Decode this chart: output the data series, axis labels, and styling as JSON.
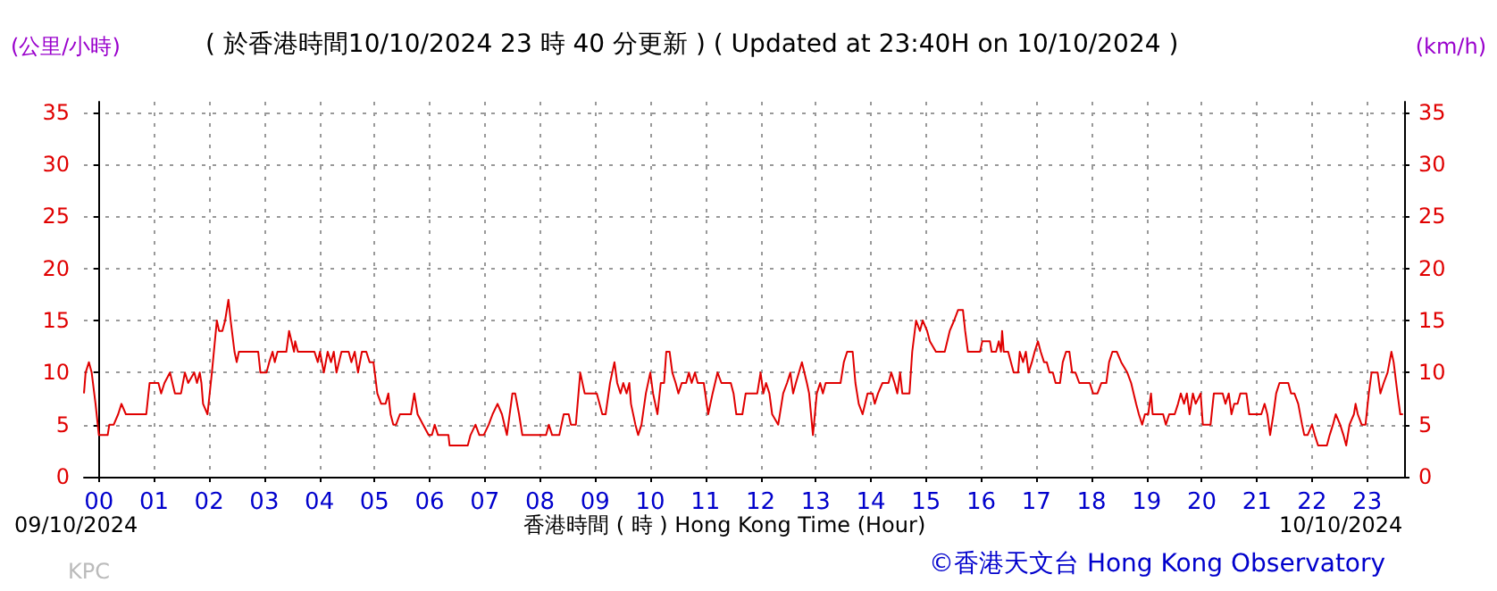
{
  "chart_data": {
    "type": "line",
    "title": "( 於香港時間10/10/2024 23 時 40 分更新 ) ( Updated at 23:40H on 10/10/2024 )",
    "xlabel": "香港時間 ( 時 ) Hong Kong Time (Hour)",
    "ylabel": "(公里/小時)",
    "y2label": "(km/h)",
    "annotations": [
      "09/10/2024",
      "10/10/2024",
      "KPC",
      "©香港天文台 Hong Kong Observatory"
    ],
    "x": [
      -0.27,
      -0.24,
      -0.18,
      -0.13,
      -0.06,
      0,
      0.16,
      0.19,
      0.27,
      0.35,
      0.41,
      0.49,
      0.86,
      0.92,
      1.08,
      1.13,
      1.19,
      1.29,
      1.38,
      1.49,
      1.56,
      1.62,
      1.73,
      1.78,
      1.83,
      1.86,
      1.89,
      1.97,
      2.05,
      2.14,
      2.18,
      2.24,
      2.29,
      2.35,
      2.39,
      2.46,
      2.5,
      2.54,
      2.89,
      2.93,
      3.04,
      3.09,
      3.15,
      3.19,
      3.24,
      3.4,
      3.45,
      3.54,
      3.56,
      3.61,
      3.91,
      3.97,
      4.01,
      4.08,
      4.15,
      4.21,
      4.26,
      4.31,
      4.4,
      4.53,
      4.58,
      4.64,
      4.7,
      4.77,
      4.85,
      4.91,
      4.98,
      5.05,
      5.12,
      5.2,
      5.25,
      5.29,
      5.34,
      5.39,
      5.46,
      5.66,
      5.72,
      5.78,
      5.88,
      5.98,
      6.04,
      6.09,
      6.15,
      6.34,
      6.36,
      6.69,
      6.74,
      6.83,
      6.9,
      6.98,
      7.07,
      7.14,
      7.23,
      7.31,
      7.4,
      7.5,
      7.55,
      7.62,
      7.68,
      8.11,
      8.16,
      8.22,
      8.35,
      8.43,
      8.52,
      8.56,
      8.65,
      8.73,
      8.81,
      9.03,
      9.08,
      9.13,
      9.19,
      9.27,
      9.35,
      9.4,
      9.46,
      9.51,
      9.57,
      9.62,
      9.65,
      9.73,
      9.78,
      9.84,
      9.92,
      10.0,
      10.05,
      10.13,
      10.19,
      10.25,
      10.29,
      10.35,
      10.4,
      10.46,
      10.51,
      10.57,
      10.65,
      10.7,
      10.75,
      10.81,
      10.86,
      10.97,
      11.05,
      11.13,
      11.22,
      11.29,
      11.46,
      11.51,
      11.56,
      11.67,
      11.73,
      11.94,
      12.0,
      12.05,
      12.1,
      12.16,
      12.21,
      12.32,
      12.41,
      12.48,
      12.54,
      12.59,
      12.64,
      12.75,
      12.84,
      12.88,
      12.95,
      13.02,
      13.08,
      13.13,
      13.18,
      13.45,
      13.51,
      13.57,
      13.67,
      13.72,
      13.78,
      13.85,
      13.94,
      14.03,
      14.07,
      14.13,
      14.21,
      14.32,
      14.37,
      14.43,
      14.48,
      14.53,
      14.57,
      14.7,
      14.75,
      14.82,
      14.89,
      14.94,
      15.02,
      15.07,
      15.18,
      15.34,
      15.43,
      15.51,
      15.58,
      15.67,
      15.71,
      15.76,
      15.98,
      16.02,
      16.16,
      16.19,
      16.27,
      16.32,
      16.36,
      16.38,
      16.41,
      16.49,
      16.54,
      16.59,
      16.67,
      16.7,
      16.76,
      16.81,
      16.86,
      16.92,
      16.97,
      17.03,
      17.08,
      17.14,
      17.19,
      17.24,
      17.3,
      17.35,
      17.43,
      17.48,
      17.54,
      17.6,
      17.65,
      17.71,
      17.78,
      17.97,
      18.03,
      18.11,
      18.18,
      18.27,
      18.32,
      18.38,
      18.46,
      18.54,
      18.65,
      18.72,
      18.81,
      18.86,
      18.92,
      18.97,
      19.03,
      19.08,
      19.11,
      19.3,
      19.35,
      19.41,
      19.51,
      19.57,
      19.62,
      19.68,
      19.73,
      19.78,
      19.84,
      19.89,
      19.98,
      20.02,
      20.16,
      20.22,
      20.38,
      20.43,
      20.49,
      20.54,
      20.59,
      20.65,
      20.7,
      20.81,
      20.86,
      21.08,
      21.14,
      21.19,
      21.24,
      21.3,
      21.35,
      21.41,
      21.57,
      21.62,
      21.68,
      21.75,
      21.82,
      21.86,
      21.92,
      22.0,
      22.05,
      22.11,
      22.27,
      22.32,
      22.38,
      22.43,
      22.51,
      22.57,
      22.62,
      22.68,
      22.76,
      22.79,
      22.83,
      22.9,
      22.97,
      23.03,
      23.08,
      23.19,
      23.24,
      23.3,
      23.37,
      23.44,
      23.48,
      23.55,
      23.6,
      23.65
    ],
    "series": [
      {
        "color": "#e00000",
        "values": [
          8,
          10,
          11,
          10,
          7,
          4,
          4,
          5,
          5,
          6,
          7,
          6,
          6,
          9,
          9,
          8,
          9,
          10,
          8,
          8,
          10,
          9,
          10,
          9,
          10,
          9,
          7,
          6,
          10,
          15,
          14,
          14,
          15,
          17,
          15,
          12,
          11,
          12,
          12,
          10,
          10,
          11,
          12,
          11,
          12,
          12,
          14,
          12,
          13,
          12,
          12,
          11,
          12,
          10,
          12,
          11,
          12,
          10,
          12,
          12,
          11,
          12,
          10,
          12,
          12,
          11,
          11,
          8,
          7,
          7,
          8,
          6,
          5,
          5,
          6,
          6,
          8,
          6,
          5,
          4,
          4,
          5,
          4,
          4,
          3,
          3,
          4,
          5,
          4,
          4,
          5,
          6,
          7,
          6,
          4,
          8,
          8,
          6,
          4,
          4,
          5,
          4,
          4,
          6,
          6,
          5,
          5,
          10,
          8,
          8,
          7,
          6,
          6,
          9,
          11,
          9,
          8,
          9,
          8,
          9,
          7,
          5,
          4,
          5,
          8,
          10,
          8,
          6,
          9,
          9,
          12,
          12,
          10,
          9,
          8,
          9,
          9,
          10,
          9,
          10,
          9,
          9,
          6,
          8,
          10,
          9,
          9,
          8,
          6,
          6,
          8,
          8,
          10,
          8,
          9,
          8,
          6,
          5,
          8,
          9,
          10,
          8,
          9,
          11,
          9,
          8,
          4,
          8,
          9,
          8,
          9,
          9,
          11,
          12,
          12,
          9,
          7,
          6,
          8,
          8,
          7,
          8,
          9,
          9,
          10,
          9,
          8,
          10,
          8,
          8,
          12,
          15,
          14,
          15,
          14,
          13,
          12,
          12,
          14,
          15,
          16,
          16,
          14,
          12,
          12,
          13,
          13,
          12,
          12,
          13,
          12,
          14,
          12,
          12,
          11,
          10,
          10,
          12,
          11,
          12,
          10,
          11,
          12,
          13,
          12,
          11,
          11,
          10,
          10,
          9,
          9,
          11,
          12,
          12,
          10,
          10,
          9,
          9,
          8,
          8,
          9,
          9,
          11,
          12,
          12,
          11,
          10,
          9,
          7,
          6,
          5,
          6,
          6,
          8,
          6,
          6,
          5,
          6,
          6,
          7,
          8,
          7,
          8,
          6,
          8,
          7,
          8,
          5,
          5,
          8,
          8,
          7,
          8,
          6,
          7,
          7,
          8,
          8,
          6,
          6,
          7,
          6,
          4,
          6,
          8,
          9,
          9,
          8,
          8,
          7,
          5,
          4,
          4,
          5,
          4,
          3,
          3,
          4,
          5,
          6,
          5,
          4,
          3,
          5,
          6,
          7,
          6,
          5,
          5,
          8,
          10,
          10,
          8,
          9,
          10,
          12,
          11,
          8,
          6,
          6
        ]
      }
    ],
    "xlim": [
      -0.27,
      23.67
    ],
    "xticks": [
      {
        "value": 0,
        "label": "00"
      },
      {
        "value": 1,
        "label": "01"
      },
      {
        "value": 2,
        "label": "02"
      },
      {
        "value": 3,
        "label": "03"
      },
      {
        "value": 4,
        "label": "04"
      },
      {
        "value": 5,
        "label": "05"
      },
      {
        "value": 6,
        "label": "06"
      },
      {
        "value": 7,
        "label": "07"
      },
      {
        "value": 8,
        "label": "08"
      },
      {
        "value": 9,
        "label": "09"
      },
      {
        "value": 10,
        "label": "10"
      },
      {
        "value": 11,
        "label": "11"
      },
      {
        "value": 12,
        "label": "12"
      },
      {
        "value": 13,
        "label": "13"
      },
      {
        "value": 14,
        "label": "14"
      },
      {
        "value": 15,
        "label": "15"
      },
      {
        "value": 16,
        "label": "16"
      },
      {
        "value": 17,
        "label": "17"
      },
      {
        "value": 18,
        "label": "18"
      },
      {
        "value": 19,
        "label": "19"
      },
      {
        "value": 20,
        "label": "20"
      },
      {
        "value": 21,
        "label": "21"
      },
      {
        "value": 22,
        "label": "22"
      },
      {
        "value": 23,
        "label": "23"
      }
    ],
    "ylim": [
      0,
      36
    ],
    "yticks": [
      0,
      5,
      10,
      15,
      20,
      25,
      30,
      35
    ],
    "y2lim": [
      0,
      36
    ],
    "y2ticks": [
      0,
      5,
      10,
      15,
      20,
      25,
      30,
      35
    ],
    "grid": true,
    "marker": "none",
    "line_style": "solid"
  }
}
